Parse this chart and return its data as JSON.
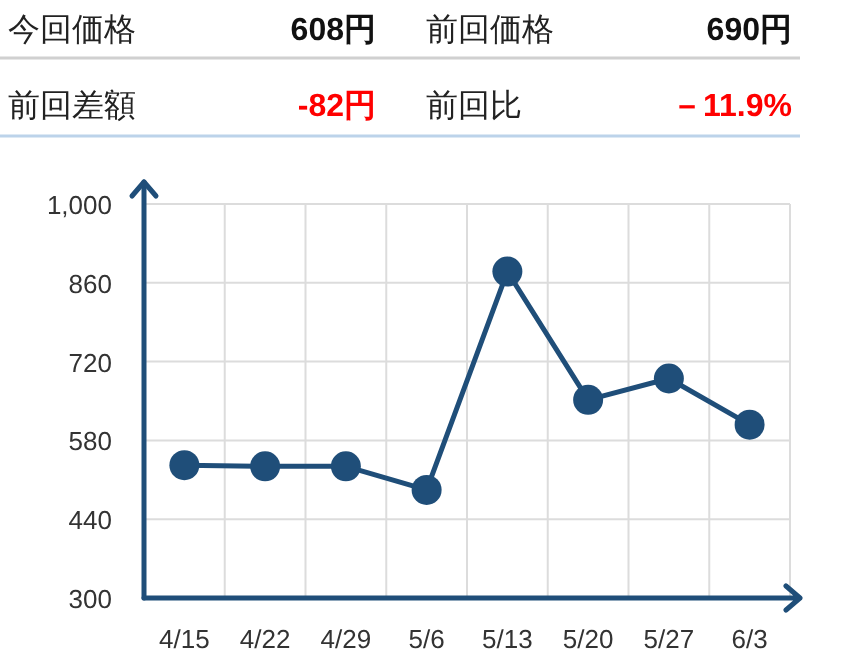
{
  "chart_data": [
    {
      "type": "other",
      "annotations": [
        "今回価格",
        "608円",
        "前回価格",
        "690円",
        "前回差額",
        "-82円",
        "前回比",
        "－11.9%"
      ],
      "colors": [
        "#222222",
        "#111111",
        "#222222",
        "#111111",
        "#222222",
        "#ff0000",
        "#222222",
        "#ff0000"
      ]
    },
    {
      "type": "line",
      "categories": [
        "4/15",
        "4/22",
        "4/29",
        "5/6",
        "5/13",
        "5/20",
        "5/27",
        "6/3"
      ],
      "series": [
        {
          "color": "#1f4e79",
          "values": [
            536,
            534,
            534,
            492,
            880,
            652,
            690,
            608
          ]
        }
      ],
      "ylim": [
        300,
        1000
      ],
      "yticks": [
        300,
        440,
        580,
        720,
        860,
        {
          "value": 1000,
          "label": "1,000"
        }
      ],
      "grid": true,
      "marker": "circle"
    }
  ]
}
